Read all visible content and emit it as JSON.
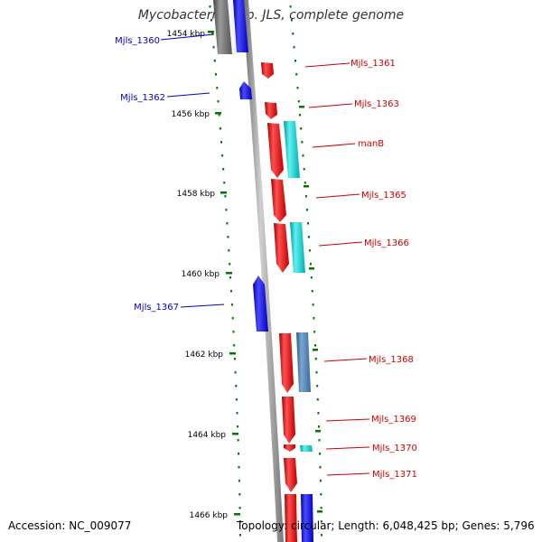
{
  "title": "Mycobacterium sp. JLS, complete genome",
  "footer": {
    "accession": "Accession: NC_009077",
    "summary": "Topology: circular; Length: 6,048,425 bp; Genes: 5,796"
  },
  "ticks": [
    "1454 kbp",
    "1456 kbp",
    "1458 kbp",
    "1460 kbp",
    "1462 kbp",
    "1464 kbp",
    "1466 kbp"
  ],
  "genes": [
    {
      "label": "Mjls_1360",
      "strand": "reverse"
    },
    {
      "label": "Mjls_1361",
      "strand": "forward"
    },
    {
      "label": "Mjls_1362",
      "strand": "reverse"
    },
    {
      "label": "Mjls_1363",
      "strand": "forward"
    },
    {
      "label": "manB",
      "strand": "forward"
    },
    {
      "label": "Mjls_1365",
      "strand": "forward"
    },
    {
      "label": "Mjls_1366",
      "strand": "forward"
    },
    {
      "label": "Mjls_1367",
      "strand": "reverse"
    },
    {
      "label": "Mjls_1368",
      "strand": "forward"
    },
    {
      "label": "Mjls_1369",
      "strand": "forward"
    },
    {
      "label": "Mjls_1370",
      "strand": "forward"
    },
    {
      "label": "Mjls_1371",
      "strand": "forward"
    }
  ],
  "colors": {
    "forward_gene": "#ee0000",
    "reverse_gene": "#0000ee",
    "cog_cyan": "#00cccc",
    "cog_steel": "#4f7fae",
    "backbone": "#888888",
    "tick": "#007700"
  }
}
